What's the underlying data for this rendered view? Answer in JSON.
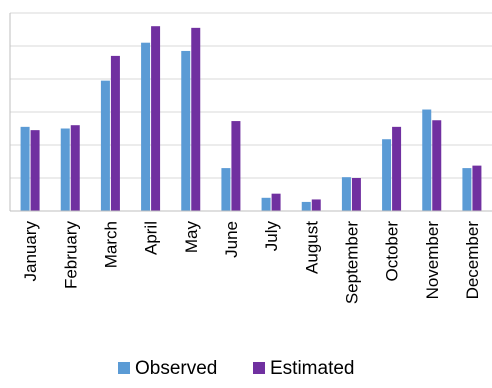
{
  "chart_data": {
    "type": "bar",
    "categories": [
      "January",
      "February",
      "March",
      "April",
      "May",
      "June",
      "July",
      "August",
      "September",
      "October",
      "November",
      "December"
    ],
    "series": [
      {
        "name": "Observed",
        "color": "#5B9BD5",
        "values": [
          5.1,
          5.0,
          7.9,
          10.2,
          9.7,
          2.6,
          0.8,
          0.55,
          2.05,
          4.35,
          6.15,
          2.6
        ]
      },
      {
        "name": "Estimated",
        "color": "#7030A0",
        "values": [
          4.9,
          5.2,
          9.4,
          11.2,
          11.1,
          5.45,
          1.05,
          0.7,
          2.0,
          5.1,
          5.5,
          2.75
        ]
      }
    ],
    "ylim": [
      0,
      12
    ],
    "ytick_step": 2,
    "grid": true,
    "legend": "bottom",
    "title": "",
    "xlabel": "",
    "ylabel": ""
  }
}
